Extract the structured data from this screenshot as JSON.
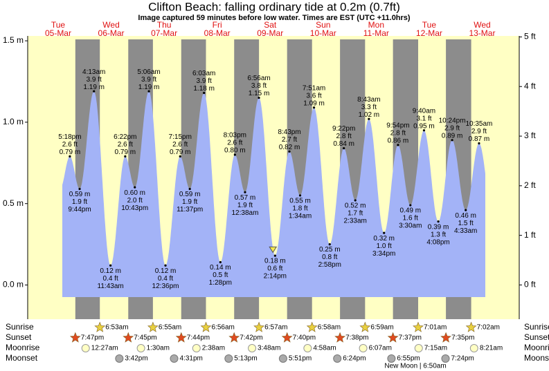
{
  "chart_data": {
    "type": "tide",
    "title": "Clifton Beach: falling  ordinary tide at 0.2m (0.7ft)",
    "subtitle": "Image captured 59 minutes before low water. Times are EST (UTC +11.0hrs)",
    "days": [
      {
        "weekday": "Tue",
        "date": "05-Mar"
      },
      {
        "weekday": "Wed",
        "date": "06-Mar"
      },
      {
        "weekday": "Thu",
        "date": "07-Mar"
      },
      {
        "weekday": "Fri",
        "date": "08-Mar"
      },
      {
        "weekday": "Sat",
        "date": "09-Mar"
      },
      {
        "weekday": "Sun",
        "date": "10-Mar"
      },
      {
        "weekday": "Mon",
        "date": "11-Mar"
      },
      {
        "weekday": "Tue",
        "date": "12-Mar"
      },
      {
        "weekday": "Wed",
        "date": "13-Mar"
      }
    ],
    "ylim": [
      -0.21,
      1.53
    ],
    "yticks": [
      {
        "value": 0,
        "label": "0.0 m"
      },
      {
        "value": 0.5,
        "label": "0.5 m"
      },
      {
        "value": 1,
        "label": "1.0 m"
      },
      {
        "value": 1.5,
        "label": "1.5 m"
      }
    ],
    "y2lim": [
      -0.69,
      5.02
    ],
    "y2ticks": [
      {
        "value": 0,
        "label": "0 ft"
      },
      {
        "value": 1,
        "label": "1 ft"
      },
      {
        "value": 2,
        "label": "2 ft"
      },
      {
        "value": 3,
        "label": "3 ft"
      },
      {
        "value": 4,
        "label": "4 ft"
      },
      {
        "value": 5,
        "label": "5 ft"
      }
    ],
    "color": "#a3b3f7",
    "day_color": "#ffffc4",
    "night_color": "#8c8c8c",
    "extremes": [
      {
        "day": "05-Mar",
        "time": "5:18pm",
        "m": 0.79,
        "m_label": "0.79 m",
        "ft_label": "2.6 ft"
      },
      {
        "day": "05-Mar",
        "time": "9:44pm",
        "m": 0.59,
        "m_label": "0.59 m",
        "ft_label": "1.9 ft"
      },
      {
        "day": "06-Mar",
        "time": "4:13am",
        "m": 1.19,
        "m_label": "1.19 m",
        "ft_label": "3.9 ft"
      },
      {
        "day": "06-Mar",
        "time": "11:43am",
        "m": 0.12,
        "m_label": "0.12 m",
        "ft_label": "0.4 ft"
      },
      {
        "day": "06-Mar",
        "time": "6:22pm",
        "m": 0.79,
        "m_label": "0.79 m",
        "ft_label": "2.6 ft"
      },
      {
        "day": "06-Mar",
        "time": "10:43pm",
        "m": 0.6,
        "m_label": "0.60 m",
        "ft_label": "2.0 ft"
      },
      {
        "day": "07-Mar",
        "time": "5:06am",
        "m": 1.19,
        "m_label": "1.19 m",
        "ft_label": "3.9 ft"
      },
      {
        "day": "07-Mar",
        "time": "12:36pm",
        "m": 0.12,
        "m_label": "0.12 m",
        "ft_label": "0.4 ft"
      },
      {
        "day": "07-Mar",
        "time": "7:15pm",
        "m": 0.79,
        "m_label": "0.79 m",
        "ft_label": "2.6 ft"
      },
      {
        "day": "07-Mar",
        "time": "11:37pm",
        "m": 0.59,
        "m_label": "0.59 m",
        "ft_label": "1.9 ft"
      },
      {
        "day": "08-Mar",
        "time": "6:03am",
        "m": 1.18,
        "m_label": "1.18 m",
        "ft_label": "3.9 ft"
      },
      {
        "day": "08-Mar",
        "time": "1:28pm",
        "m": 0.14,
        "m_label": "0.14 m",
        "ft_label": "0.5 ft"
      },
      {
        "day": "08-Mar",
        "time": "8:03pm",
        "m": 0.8,
        "m_label": "0.80 m",
        "ft_label": "2.6 ft"
      },
      {
        "day": "09-Mar",
        "time": "12:38am",
        "m": 0.57,
        "m_label": "0.57 m",
        "ft_label": "1.9 ft"
      },
      {
        "day": "09-Mar",
        "time": "6:56am",
        "m": 1.15,
        "m_label": "1.15 m",
        "ft_label": "3.8 ft"
      },
      {
        "day": "09-Mar",
        "time": "2:14pm",
        "m": 0.18,
        "m_label": "0.18 m",
        "ft_label": "0.6 ft"
      },
      {
        "day": "09-Mar",
        "time": "8:43pm",
        "m": 0.82,
        "m_label": "0.82 m",
        "ft_label": "2.7 ft"
      },
      {
        "day": "10-Mar",
        "time": "1:34am",
        "m": 0.55,
        "m_label": "0.55 m",
        "ft_label": "1.8 ft"
      },
      {
        "day": "10-Mar",
        "time": "7:51am",
        "m": 1.09,
        "m_label": "1.09 m",
        "ft_label": "3.6 ft"
      },
      {
        "day": "10-Mar",
        "time": "2:58pm",
        "m": 0.25,
        "m_label": "0.25 m",
        "ft_label": "0.8 ft"
      },
      {
        "day": "10-Mar",
        "time": "9:22pm",
        "m": 0.84,
        "m_label": "0.84 m",
        "ft_label": "2.8 ft"
      },
      {
        "day": "11-Mar",
        "time": "2:33am",
        "m": 0.52,
        "m_label": "0.52 m",
        "ft_label": "1.7 ft"
      },
      {
        "day": "11-Mar",
        "time": "8:43am",
        "m": 1.02,
        "m_label": "1.02 m",
        "ft_label": "3.3 ft"
      },
      {
        "day": "11-Mar",
        "time": "3:34pm",
        "m": 0.32,
        "m_label": "0.32 m",
        "ft_label": "1.0 ft"
      },
      {
        "day": "11-Mar",
        "time": "9:54pm",
        "m": 0.86,
        "m_label": "0.86 m",
        "ft_label": "2.8 ft"
      },
      {
        "day": "12-Mar",
        "time": "3:30am",
        "m": 0.49,
        "m_label": "0.49 m",
        "ft_label": "1.6 ft"
      },
      {
        "day": "12-Mar",
        "time": "9:40am",
        "m": 0.95,
        "m_label": "0.95 m",
        "ft_label": "3.1 ft"
      },
      {
        "day": "12-Mar",
        "time": "4:08pm",
        "m": 0.39,
        "m_label": "0.39 m",
        "ft_label": "1.3 ft"
      },
      {
        "day": "12-Mar",
        "time": "10:24pm",
        "m": 0.89,
        "m_label": "0.89 m",
        "ft_label": "2.9 ft"
      },
      {
        "day": "13-Mar",
        "time": "4:33am",
        "m": 0.46,
        "m_label": "0.46 m",
        "ft_label": "1.5 ft"
      },
      {
        "day": "13-Mar",
        "time": "10:35am",
        "m": 0.87,
        "m_label": "0.87 m",
        "ft_label": "2.9 ft"
      }
    ],
    "now": {
      "day": "09-Mar",
      "time": "1:15pm",
      "m": 0.2
    },
    "rows": {
      "sunrise": {
        "label": "Sunrise",
        "events": [
          {
            "day": "06-Mar",
            "time": "6:53am"
          },
          {
            "day": "07-Mar",
            "time": "6:55am"
          },
          {
            "day": "08-Mar",
            "time": "6:56am"
          },
          {
            "day": "09-Mar",
            "time": "6:57am"
          },
          {
            "day": "10-Mar",
            "time": "6:58am"
          },
          {
            "day": "11-Mar",
            "time": "6:59am"
          },
          {
            "day": "12-Mar",
            "time": "7:01am"
          },
          {
            "day": "13-Mar",
            "time": "7:02am"
          }
        ]
      },
      "sunset": {
        "label": "Sunset",
        "events": [
          {
            "day": "05-Mar",
            "time": "7:47pm"
          },
          {
            "day": "06-Mar",
            "time": "7:45pm"
          },
          {
            "day": "07-Mar",
            "time": "7:44pm"
          },
          {
            "day": "08-Mar",
            "time": "7:42pm"
          },
          {
            "day": "09-Mar",
            "time": "7:40pm"
          },
          {
            "day": "10-Mar",
            "time": "7:38pm"
          },
          {
            "day": "11-Mar",
            "time": "7:37pm"
          },
          {
            "day": "12-Mar",
            "time": "7:35pm"
          }
        ]
      },
      "moonrise": {
        "label": "Moonrise",
        "events": [
          {
            "day": "06-Mar",
            "time": "12:27am"
          },
          {
            "day": "07-Mar",
            "time": "1:30am"
          },
          {
            "day": "08-Mar",
            "time": "2:38am"
          },
          {
            "day": "09-Mar",
            "time": "3:48am"
          },
          {
            "day": "10-Mar",
            "time": "4:58am"
          },
          {
            "day": "11-Mar",
            "time": "6:07am"
          },
          {
            "day": "12-Mar",
            "time": "7:15am"
          },
          {
            "day": "13-Mar",
            "time": "8:21am"
          }
        ]
      },
      "moonset": {
        "label": "Moonset",
        "events": [
          {
            "day": "06-Mar",
            "time": "3:42pm"
          },
          {
            "day": "07-Mar",
            "time": "4:31pm"
          },
          {
            "day": "08-Mar",
            "time": "5:13pm"
          },
          {
            "day": "09-Mar",
            "time": "5:51pm"
          },
          {
            "day": "10-Mar",
            "time": "6:24pm"
          },
          {
            "day": "11-Mar",
            "time": "6:55pm"
          },
          {
            "day": "12-Mar",
            "time": "7:24pm"
          }
        ]
      }
    },
    "moon_phase": "New Moon | 6:50am"
  }
}
